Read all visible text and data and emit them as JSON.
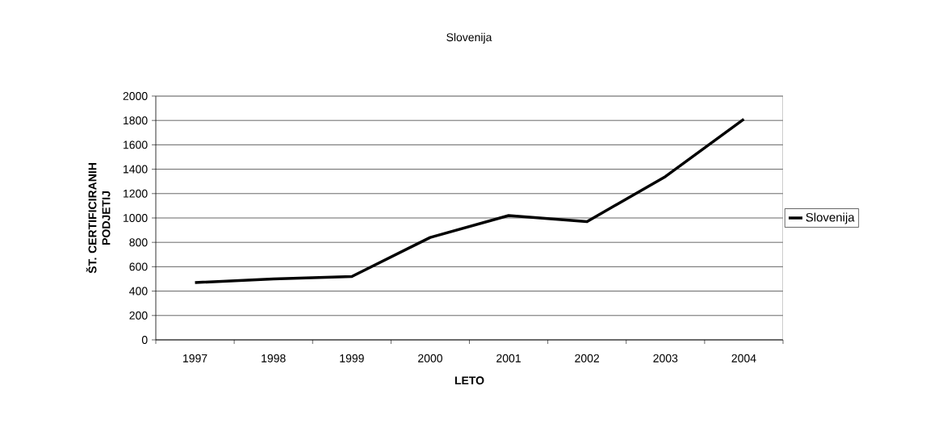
{
  "chart_data": {
    "type": "line",
    "title": "Slovenija",
    "xlabel": "LETO",
    "ylabel": "ŠT. CERTIFICIRANIH PODJETIJ",
    "categories": [
      "1997",
      "1998",
      "1999",
      "2000",
      "2001",
      "2002",
      "2003",
      "2004"
    ],
    "series": [
      {
        "name": "Slovenija",
        "color": "#000000",
        "values": [
          470,
          500,
          520,
          840,
          1020,
          970,
          1340,
          1810
        ]
      }
    ],
    "ylim": [
      0,
      2000
    ],
    "yticks": [
      0,
      200,
      400,
      600,
      800,
      1000,
      1200,
      1400,
      1600,
      1800,
      2000
    ],
    "grid": "y",
    "legend": "right",
    "marker": "none",
    "line_style": "solid"
  }
}
